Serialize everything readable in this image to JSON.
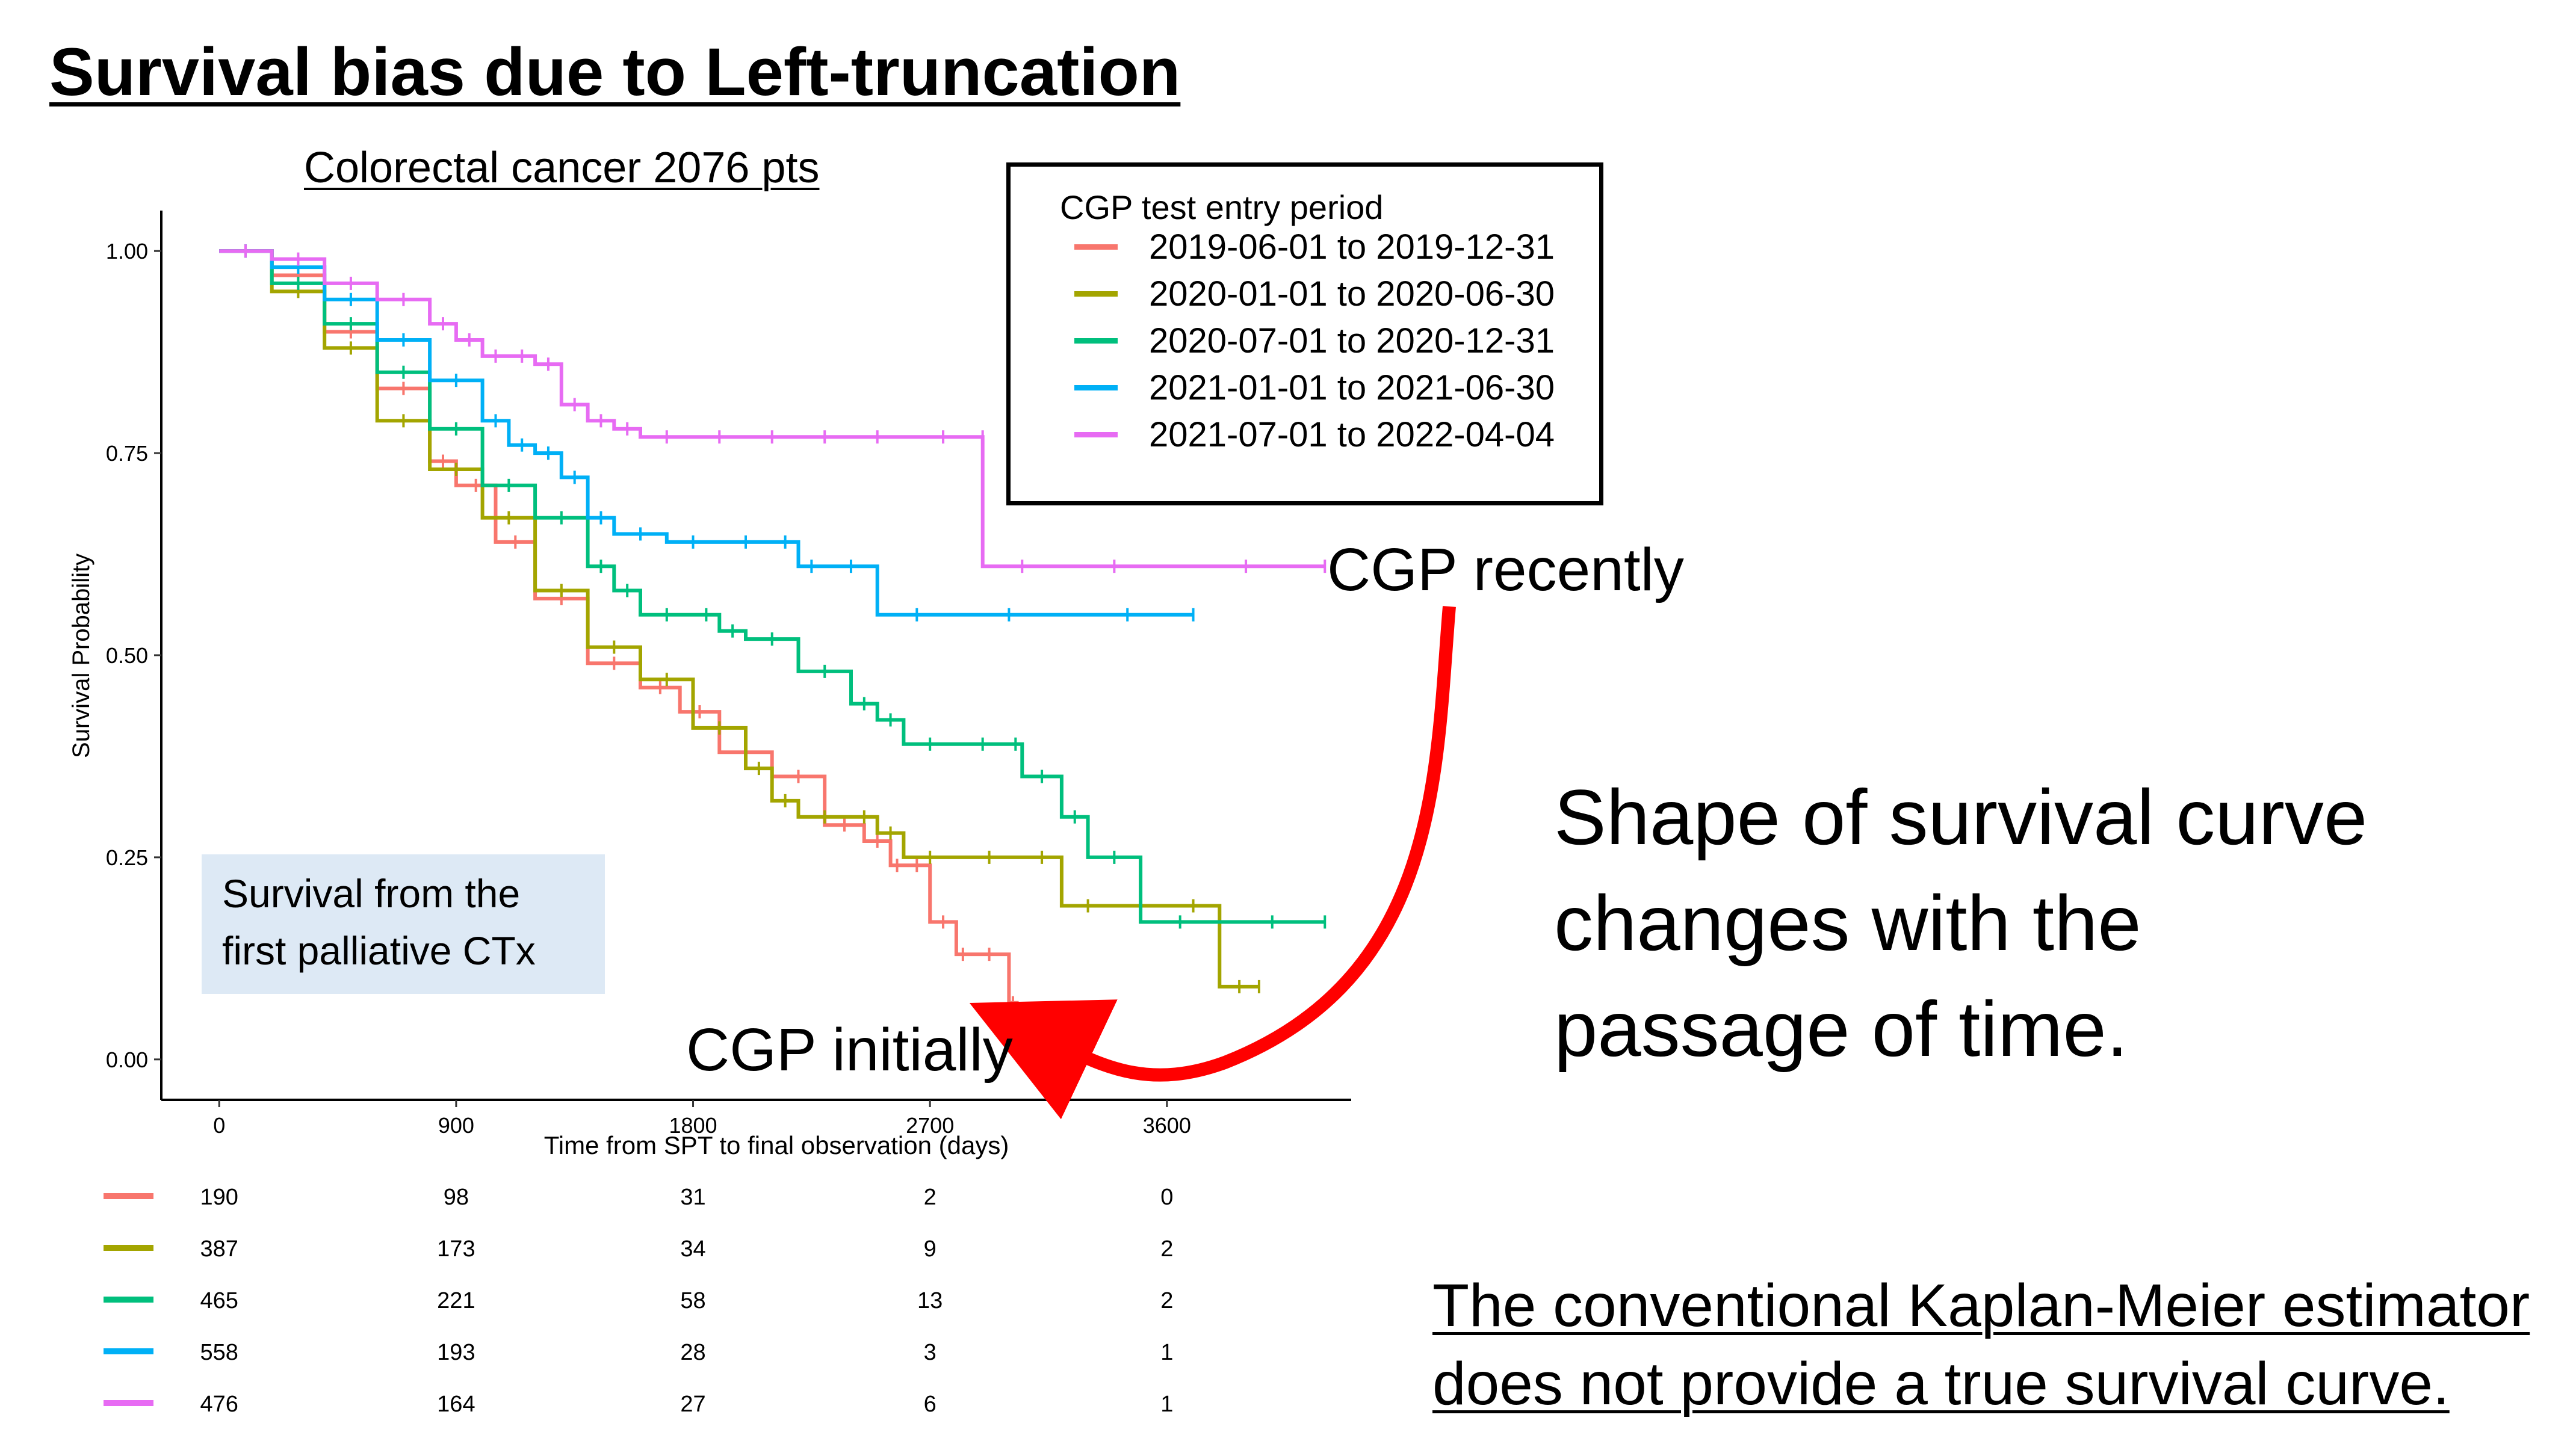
{
  "title": "Survival bias due to Left-truncation",
  "chart_data": {
    "type": "line",
    "subtitle": "Colorectal cancer 2076 pts",
    "xlabel": "Time from SPT to final observation (days)",
    "ylabel": "Survival Probability",
    "xlim": [
      -220,
      4300
    ],
    "ylim": [
      -0.05,
      1.05
    ],
    "x_ticks": [
      "0",
      "900",
      "1800",
      "2700",
      "3600"
    ],
    "y_ticks": [
      "0.00",
      "0.25",
      "0.50",
      "0.75",
      "1.00"
    ],
    "legend_title": "CGP test entry period",
    "legend_position": "top-right",
    "series": [
      {
        "name": "2019-06-01 to 2019-12-31",
        "color": "#F8766D",
        "x": [
          0,
          200,
          400,
          600,
          800,
          900,
          1050,
          1200,
          1400,
          1600,
          1750,
          1900,
          2100,
          2300,
          2450,
          2550,
          2600,
          2700,
          2800,
          2850,
          3000,
          3030
        ],
        "y": [
          1.0,
          0.97,
          0.9,
          0.83,
          0.74,
          0.71,
          0.64,
          0.57,
          0.49,
          0.46,
          0.43,
          0.38,
          0.35,
          0.29,
          0.27,
          0.24,
          0.24,
          0.17,
          0.13,
          0.13,
          0.07,
          0.05
        ]
      },
      {
        "name": "2020-01-01 to 2020-06-30",
        "color": "#A3A500",
        "x": [
          0,
          200,
          400,
          600,
          800,
          1000,
          1200,
          1400,
          1600,
          1800,
          2000,
          2100,
          2200,
          2400,
          2500,
          2600,
          2800,
          3050,
          3200,
          3400,
          3600,
          3800,
          3950
        ],
        "y": [
          1.0,
          0.95,
          0.88,
          0.79,
          0.73,
          0.67,
          0.58,
          0.51,
          0.47,
          0.41,
          0.36,
          0.32,
          0.3,
          0.3,
          0.28,
          0.25,
          0.25,
          0.25,
          0.19,
          0.19,
          0.19,
          0.09,
          0.09
        ]
      },
      {
        "name": "2020-07-01 to 2020-12-31",
        "color": "#00BF7D",
        "x": [
          0,
          200,
          400,
          600,
          800,
          1000,
          1200,
          1400,
          1500,
          1600,
          1800,
          1900,
          2000,
          2200,
          2400,
          2500,
          2600,
          2800,
          3000,
          3050,
          3200,
          3300,
          3500,
          3800,
          4200
        ],
        "y": [
          1.0,
          0.96,
          0.91,
          0.85,
          0.78,
          0.71,
          0.67,
          0.61,
          0.58,
          0.55,
          0.55,
          0.53,
          0.52,
          0.48,
          0.44,
          0.42,
          0.39,
          0.39,
          0.39,
          0.35,
          0.3,
          0.25,
          0.17,
          0.17,
          0.17
        ]
      },
      {
        "name": "2021-01-01 to 2021-06-30",
        "color": "#00B0F6",
        "x": [
          0,
          200,
          400,
          600,
          800,
          1000,
          1100,
          1200,
          1300,
          1400,
          1500,
          1700,
          1900,
          2100,
          2200,
          2300,
          2500,
          2800,
          3200,
          3700
        ],
        "y": [
          1.0,
          0.98,
          0.94,
          0.89,
          0.84,
          0.79,
          0.76,
          0.75,
          0.72,
          0.67,
          0.65,
          0.64,
          0.64,
          0.64,
          0.61,
          0.61,
          0.55,
          0.55,
          0.55,
          0.55
        ]
      },
      {
        "name": "2021-07-01 to 2022-04-04",
        "color": "#E76BF3",
        "x": [
          0,
          200,
          400,
          600,
          800,
          900,
          1000,
          1100,
          1200,
          1300,
          1400,
          1500,
          1600,
          1800,
          2000,
          2200,
          2400,
          2600,
          2900,
          2900,
          3200,
          3600,
          4200
        ],
        "y": [
          1.0,
          0.99,
          0.96,
          0.94,
          0.91,
          0.89,
          0.87,
          0.87,
          0.86,
          0.81,
          0.79,
          0.78,
          0.77,
          0.77,
          0.77,
          0.77,
          0.77,
          0.77,
          0.77,
          0.61,
          0.61,
          0.61,
          0.61
        ]
      }
    ],
    "risk_table": {
      "times": [
        0,
        900,
        1800,
        2700,
        3600
      ],
      "rows": [
        {
          "color": "#F8766D",
          "values": [
            "190",
            "98",
            "31",
            "2",
            "0"
          ]
        },
        {
          "color": "#A3A500",
          "values": [
            "387",
            "173",
            "34",
            "9",
            "2"
          ]
        },
        {
          "color": "#00BF7D",
          "values": [
            "465",
            "221",
            "58",
            "13",
            "2"
          ]
        },
        {
          "color": "#00B0F6",
          "values": [
            "558",
            "193",
            "28",
            "3",
            "1"
          ]
        },
        {
          "color": "#E76BF3",
          "values": [
            "476",
            "164",
            "27",
            "6",
            "1"
          ]
        }
      ]
    }
  },
  "note_box": {
    "line1": "Survival from the",
    "line2": "first palliative CTx"
  },
  "annotations": {
    "recent": "CGP recently",
    "initial": "CGP initially",
    "arrow_color": "#FF0000"
  },
  "statement": {
    "line1": "Shape of survival curve",
    "line2": "changes with the",
    "line3": "passage of time."
  },
  "conclusion": {
    "line1": "The conventional Kaplan-Meier estimator",
    "line2": "does not provide a true survival curve."
  }
}
